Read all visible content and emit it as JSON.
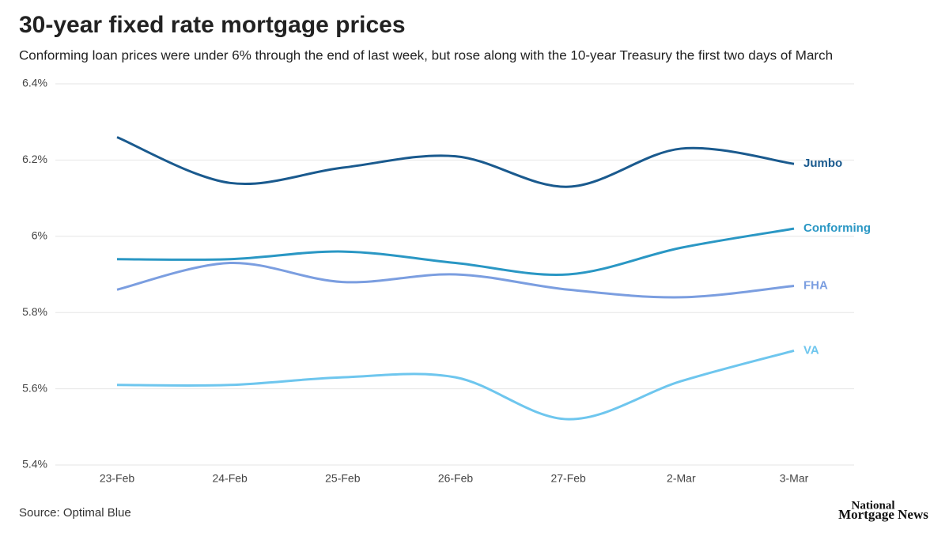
{
  "chart_data": {
    "type": "line",
    "title": "30-year fixed rate mortgage prices",
    "subtitle": "Conforming loan prices were under 6% through the end of last week, but rose along with the 10-year Treasury the first two days of March",
    "source": "Source: Optimal Blue",
    "brand": [
      "National",
      "Mortgage News"
    ],
    "categories": [
      "23-Feb",
      "24-Feb",
      "25-Feb",
      "26-Feb",
      "27-Feb",
      "2-Mar",
      "3-Mar"
    ],
    "series": [
      {
        "name": "Jumbo",
        "color": "#1a5a8e",
        "values": [
          6.26,
          6.14,
          6.18,
          6.21,
          6.13,
          6.23,
          6.19
        ]
      },
      {
        "name": "Conforming",
        "color": "#2a97c4",
        "values": [
          5.94,
          5.94,
          5.96,
          5.93,
          5.9,
          5.97,
          6.02
        ]
      },
      {
        "name": "FHA",
        "color": "#7b9ee0",
        "values": [
          5.86,
          5.93,
          5.88,
          5.9,
          5.86,
          5.84,
          5.87
        ]
      },
      {
        "name": "VA",
        "color": "#6ec6ee",
        "values": [
          5.61,
          5.61,
          5.63,
          5.63,
          5.52,
          5.62,
          5.7
        ]
      }
    ],
    "ylim": [
      5.4,
      6.4
    ],
    "yticks": [
      {
        "value": 5.4,
        "label": "5.4%"
      },
      {
        "value": 5.6,
        "label": "5.6%"
      },
      {
        "value": 5.8,
        "label": "5.8%"
      },
      {
        "value": 6,
        "label": "6%"
      },
      {
        "value": 6.2,
        "label": "6.2%"
      },
      {
        "value": 6.4,
        "label": "6.4%"
      }
    ],
    "grid": true
  }
}
